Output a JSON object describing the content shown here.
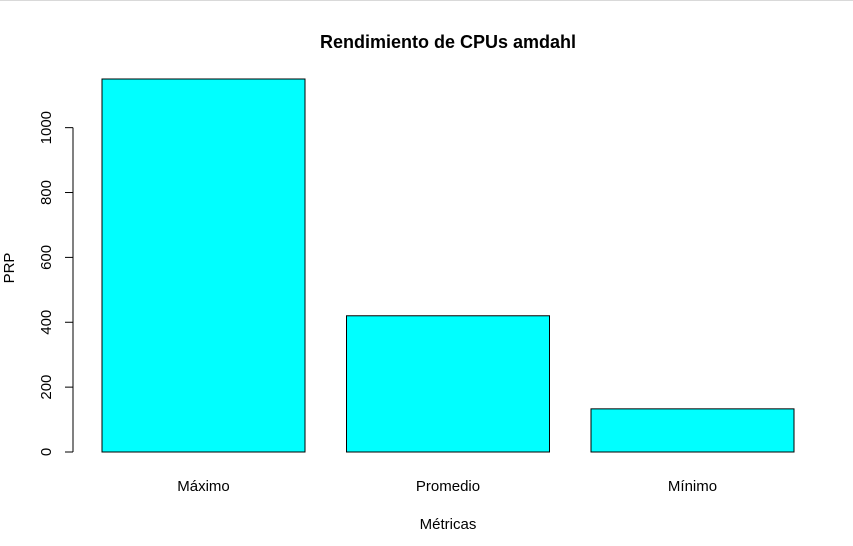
{
  "chart_data": {
    "type": "bar",
    "title": "Rendimiento de CPUs amdahl",
    "xlabel": "Métricas",
    "ylabel": "PRP",
    "categories": [
      "Máximo",
      "Promedio",
      "Mínimo"
    ],
    "values": [
      1150,
      420,
      133
    ],
    "yticks": [
      0,
      200,
      400,
      600,
      800,
      1000
    ],
    "ylim": [
      0,
      1150
    ],
    "bar_color": "#00ffff",
    "grid": false,
    "legend": "none"
  }
}
